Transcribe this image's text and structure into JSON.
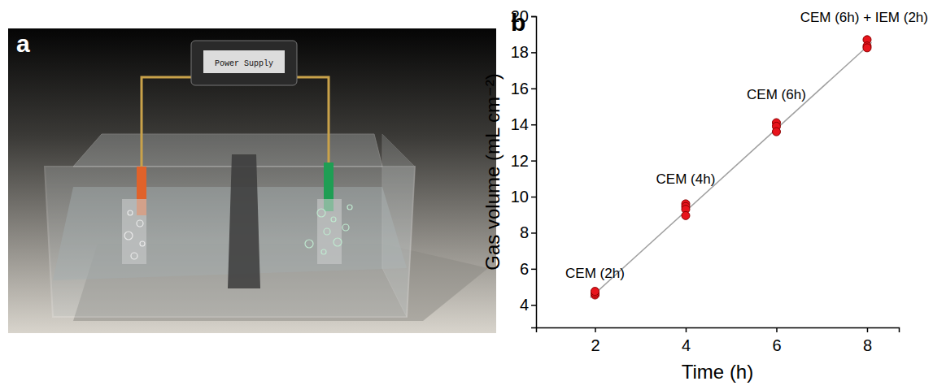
{
  "diagram": {
    "panel_label": "a",
    "power_supply": "Power Supply"
  },
  "chart_data": {
    "type": "scatter",
    "panel_label": "b",
    "x_label": "Time (h)",
    "y_label": "Gas volume (mL cm⁻²)",
    "xlim": [
      0.7,
      8.7
    ],
    "xticks": [
      2,
      4,
      6,
      8
    ],
    "ylim": [
      2.75,
      20
    ],
    "yticks": [
      4,
      6,
      8,
      10,
      12,
      14,
      16,
      18,
      20
    ],
    "grid": false,
    "series": [
      {
        "type": "scatter",
        "color": "#e8141c",
        "marker": "circle",
        "x": [
          2,
          2,
          2,
          4,
          4,
          4,
          4,
          6,
          6,
          6,
          8,
          8,
          8
        ],
        "values": [
          4.55,
          4.65,
          4.75,
          9.6,
          9.45,
          9.3,
          8.95,
          14.1,
          13.9,
          13.6,
          18.7,
          18.35,
          18.25
        ]
      },
      {
        "type": "line",
        "color": "#a0a0a0",
        "line_style": "solid",
        "x": [
          1.9,
          8.1
        ],
        "values": [
          4.4,
          18.55
        ]
      }
    ],
    "annotations": [
      {
        "text": "CEM (2h)",
        "x": 2,
        "y": 5.5
      },
      {
        "text": "CEM (4h)",
        "x": 4,
        "y": 10.7
      },
      {
        "text": "CEM (6h)",
        "x": 6,
        "y": 15.4
      },
      {
        "text": "CEM (6h) + IEM (2h)",
        "x": 8,
        "y": 19.7
      }
    ]
  }
}
